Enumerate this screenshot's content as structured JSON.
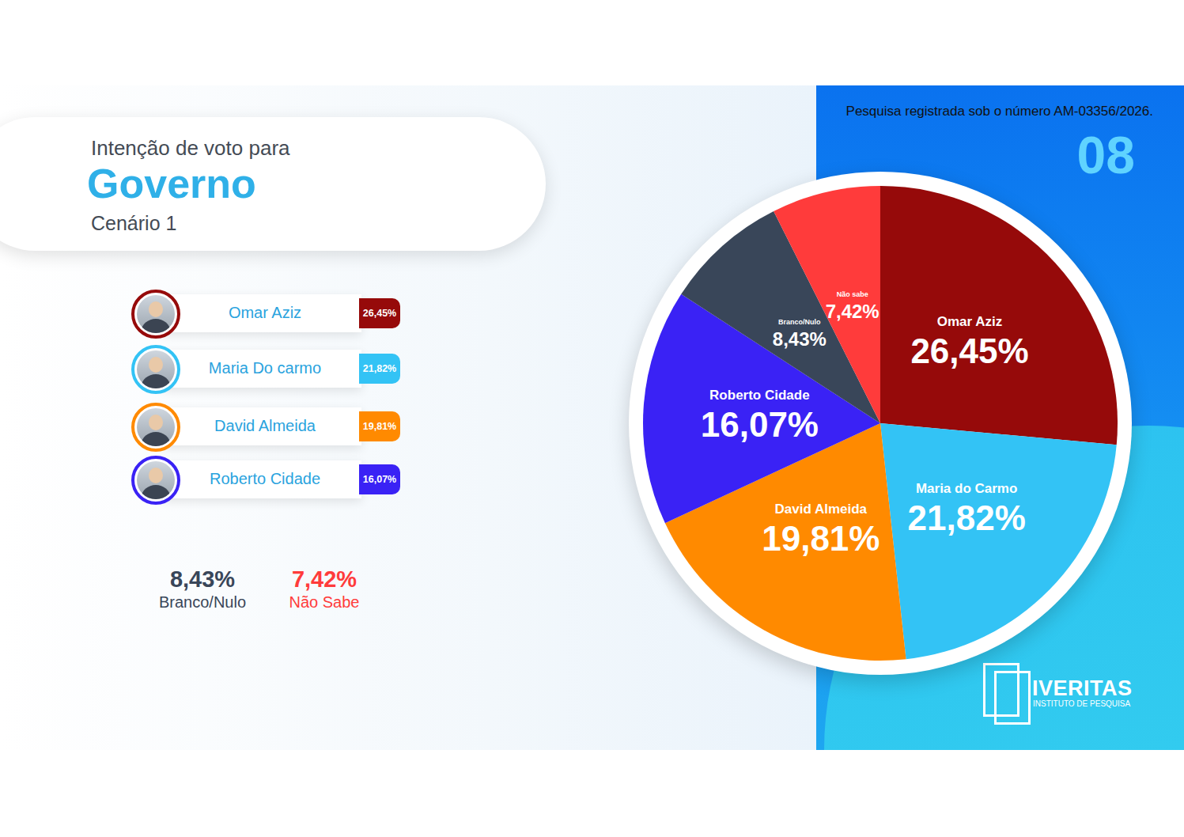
{
  "chart_data": {
    "type": "pie",
    "categories": [
      "Omar Aziz",
      "Maria do Carmo",
      "David Almeida",
      "Roberto Cidade",
      "Branco/Nulo",
      "Não sabe"
    ],
    "values": [
      26.45,
      21.82,
      19.81,
      16.07,
      8.43,
      7.42
    ],
    "value_labels": [
      "26,45%",
      "21,82%",
      "19,81%",
      "16,07%",
      "8,43%",
      "7,42%"
    ],
    "colors": [
      "#960a0a",
      "#33c3f5",
      "#ff8a00",
      "#3a22f5",
      "#394659",
      "#ff3b3b"
    ],
    "data_labels": true
  },
  "header": {
    "title": "Intenção de voto para",
    "subtitle": "Governo",
    "scenario": "Cenário 1"
  },
  "registration": "Pesquisa registrada sob o número AM-03356/2026.",
  "page_number": "08",
  "candidates": [
    {
      "name": "Omar Aziz",
      "label": "26,45%",
      "color": "#960a0a"
    },
    {
      "name": "Maria Do carmo",
      "label": "21,82%",
      "color": "#33c3f5"
    },
    {
      "name": "David Almeida",
      "label": "19,81%",
      "color": "#ff8a00"
    },
    {
      "name": "Roberto Cidade",
      "label": "16,07%",
      "color": "#3a22f5"
    }
  ],
  "others": [
    {
      "label": "8,43%",
      "name": "Branco/Nulo",
      "color": "#394659"
    },
    {
      "label": "7,42%",
      "name": "Não Sabe",
      "color": "#ff3b3b"
    }
  ],
  "logo": {
    "name": "IVERITAS",
    "tagline": "INSTITUTO DE PESQUISA"
  }
}
